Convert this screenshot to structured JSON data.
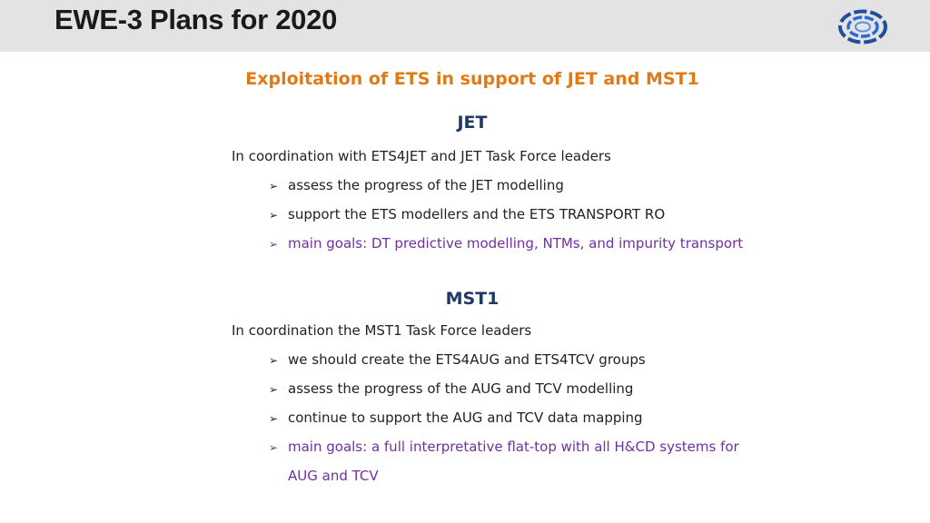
{
  "header": {
    "title": "EWE-3 Plans for 2020",
    "background": "#e3e3e3",
    "logo_icon": "ring-logo-icon"
  },
  "subtitle": "Exploitation of ETS in support of JET and MST1",
  "colors": {
    "subtitle": "#e07a16",
    "heading": "#1f3864",
    "body": "#222222",
    "goal": "#7030a0"
  },
  "sections": [
    {
      "heading": "JET",
      "intro": "In coordination with ETS4JET and JET Task Force leaders",
      "bullets": [
        "assess the progress of the JET modelling",
        "support the ETS modellers and the ETS TRANSPORT RO"
      ],
      "goal_line1": "main goals: DT predictive modelling, NTMs, and impurity transport"
    },
    {
      "heading": "MST1",
      "intro": "In coordination the MST1 Task Force leaders",
      "bullets": [
        "we should create the ETS4AUG and ETS4TCV groups",
        "assess the progress of the AUG and TCV modelling",
        "continue to support the AUG and TCV data mapping"
      ],
      "goal_line1": "main goals: a full interpretative flat-top with all H&CD systems for",
      "goal_line2": "AUG and TCV"
    }
  ],
  "bullet_glyph": "➢"
}
